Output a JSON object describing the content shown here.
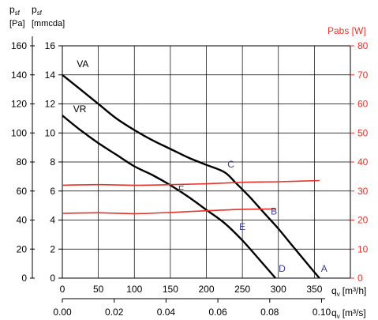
{
  "chart_data": {
    "type": "line",
    "left_axis": {
      "label_pa": [
        "p",
        "sf",
        "[Pa]"
      ],
      "label_mm": [
        "p",
        "sf",
        "[mmcda]"
      ],
      "pa_ticks": [
        "0",
        "20",
        "40",
        "60",
        "80",
        "100",
        "120",
        "140",
        "160"
      ],
      "mm_ticks": [
        "0",
        "2",
        "4",
        "6",
        "8",
        "10",
        "12",
        "14",
        "16"
      ],
      "ylim_mm": [
        0,
        16
      ]
    },
    "right_axis": {
      "label": "Pabs [W]",
      "ticks": [
        "0",
        "10",
        "20",
        "30",
        "40",
        "50",
        "60",
        "70",
        "80"
      ],
      "ylim": [
        0,
        80
      ],
      "color": "#e8322a"
    },
    "x_axis_m3h": {
      "label": "q",
      "sub": "v",
      "unit": "[m³/h]",
      "ticks": [
        "0",
        "50",
        "100",
        "150",
        "200",
        "250",
        "300",
        "350"
      ],
      "xlim": [
        0,
        400
      ]
    },
    "x_axis_m3s": {
      "label": "q",
      "sub": "v",
      "unit": "[m³/s]",
      "ticks": [
        "0.00",
        "0.02",
        "0.04",
        "0.06",
        "0.08",
        "0.10"
      ]
    },
    "series": [
      {
        "name": "VA",
        "axis": "pressure_mm",
        "color": "#000000",
        "x": [
          0,
          25,
          50,
          75,
          100,
          125,
          150,
          175,
          200,
          225,
          240,
          260,
          280,
          300,
          320,
          340,
          357
        ],
        "y": [
          14,
          13.0,
          12.0,
          11.0,
          10.2,
          9.5,
          8.9,
          8.3,
          7.8,
          7.3,
          6.6,
          5.6,
          4.5,
          3.4,
          2.2,
          1.0,
          0
        ]
      },
      {
        "name": "VR",
        "axis": "pressure_mm",
        "color": "#000000",
        "x": [
          0,
          25,
          50,
          75,
          100,
          125,
          150,
          175,
          200,
          225,
          250,
          275,
          296
        ],
        "y": [
          11.2,
          10.2,
          9.3,
          8.5,
          7.7,
          7.1,
          6.4,
          5.6,
          4.7,
          3.8,
          2.6,
          1.2,
          0
        ]
      },
      {
        "name": "",
        "axis": "power_w",
        "color": "#e8322a",
        "x": [
          0,
          50,
          100,
          150,
          200,
          250,
          300,
          357
        ],
        "y": [
          32.0,
          32.2,
          32.0,
          32.2,
          32.5,
          33.0,
          33.2,
          33.6
        ]
      },
      {
        "name": "",
        "axis": "power_w",
        "color": "#e8322a",
        "x": [
          0,
          50,
          100,
          150,
          200,
          250,
          296
        ],
        "y": [
          22.3,
          22.5,
          22.2,
          22.6,
          23.2,
          23.7,
          23.8
        ]
      }
    ],
    "points": [
      {
        "label": "A",
        "x": 357,
        "y_mm": 0,
        "axis": "pressure_mm",
        "dx": 2,
        "dy": -4,
        "anchor": "start"
      },
      {
        "label": "B",
        "x": 296,
        "y_w": 23.8,
        "axis": "power_w",
        "dx": -2,
        "dy": 11,
        "anchor": "middle"
      },
      {
        "label": "C",
        "x": 234,
        "y_mm": 7.4,
        "axis": "pressure_mm",
        "dx": 0,
        "dy": 0,
        "anchor": "middle"
      },
      {
        "label": "D",
        "x": 296,
        "y_mm": 0,
        "axis": "pressure_mm",
        "dx": 4,
        "dy": -4,
        "anchor": "start"
      },
      {
        "label": "E",
        "x": 250,
        "y_mm": 3.1,
        "axis": "pressure_mm",
        "dx": 0,
        "dy": 0,
        "anchor": "middle"
      },
      {
        "label": "F",
        "x": 165,
        "y_mm": 5.7,
        "axis": "pressure_mm",
        "dx": 0,
        "dy": 0,
        "anchor": "middle"
      }
    ],
    "curve_labels": [
      {
        "text": "VA",
        "x": 20,
        "y_mm": 14.3
      },
      {
        "text": "VR",
        "x": 15,
        "y_mm": 11.2
      }
    ],
    "grid": true
  }
}
